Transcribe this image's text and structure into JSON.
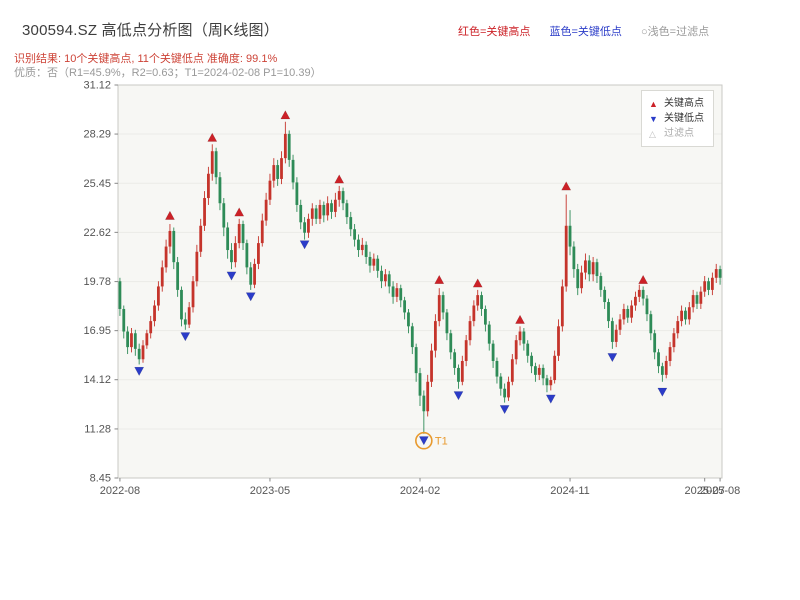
{
  "header": {
    "title": "300594.SZ 高低点分析图（周K线图）",
    "legend_high": "红色=关键高点",
    "legend_low": "蓝色=关键低点",
    "legend_filter": "○浅色=过滤点",
    "result_line": "识别结果: 10个关键高点, 11个关键低点  准确度: 99.1%",
    "quality_line": "优质：否（R1=45.9%，R2=0.63；T1=2024-02-08 P1=10.39）"
  },
  "legend_box": {
    "items": [
      {
        "glyph": "▲",
        "label": "关键高点"
      },
      {
        "glyph": "▼",
        "label": "关键低点"
      },
      {
        "glyph": "△",
        "label": "过滤点"
      }
    ]
  },
  "colors": {
    "key_high": "#cc2127",
    "key_low": "#2b3cc8",
    "filter": "#c0c0c0",
    "up": "#c5342b",
    "down": "#2e8b57",
    "t1": "#e89a2e",
    "result_text": "#cd4337",
    "muted": "#999999"
  },
  "chart_data": {
    "type": "candlestick",
    "title": "300594.SZ 高低点分析图（周K线图）",
    "xlabel": "",
    "ylabel": "",
    "ylim": [
      8.45,
      31.12
    ],
    "yticks": [
      31.12,
      28.29,
      25.45,
      22.62,
      19.78,
      16.95,
      14.12,
      11.28,
      8.45
    ],
    "xticks": [
      {
        "i": 0,
        "label": "2022-08"
      },
      {
        "i": 39,
        "label": "2023-05"
      },
      {
        "i": 78,
        "label": "2024-02"
      },
      {
        "i": 117,
        "label": "2024-11"
      },
      {
        "i": 152,
        "label": "2025-07"
      },
      {
        "i": 156,
        "label": "2025-08"
      }
    ],
    "candle_order": "ohlc",
    "candles": [
      [
        19.8,
        20.0,
        17.8,
        18.2
      ],
      [
        18.2,
        18.4,
        16.5,
        16.9
      ],
      [
        16.9,
        17.2,
        15.6,
        16.0
      ],
      [
        16.0,
        17.1,
        15.7,
        16.8
      ],
      [
        16.8,
        17.0,
        15.5,
        15.9
      ],
      [
        15.9,
        16.2,
        15.0,
        15.3
      ],
      [
        15.3,
        16.4,
        15.1,
        16.1
      ],
      [
        16.1,
        17.0,
        15.9,
        16.8
      ],
      [
        16.8,
        17.8,
        16.5,
        17.5
      ],
      [
        17.5,
        18.7,
        17.2,
        18.4
      ],
      [
        18.4,
        19.8,
        18.1,
        19.5
      ],
      [
        19.5,
        21.0,
        19.2,
        20.6
      ],
      [
        20.6,
        22.2,
        20.3,
        21.8
      ],
      [
        21.8,
        23.1,
        21.4,
        22.7
      ],
      [
        22.7,
        22.9,
        20.5,
        20.9
      ],
      [
        20.9,
        21.2,
        18.9,
        19.3
      ],
      [
        19.3,
        19.5,
        17.2,
        17.6
      ],
      [
        17.6,
        18.0,
        17.0,
        17.3
      ],
      [
        17.3,
        18.6,
        17.1,
        18.3
      ],
      [
        18.3,
        20.1,
        18.0,
        19.8
      ],
      [
        19.8,
        21.9,
        19.5,
        21.5
      ],
      [
        21.5,
        23.4,
        21.2,
        23.0
      ],
      [
        23.0,
        25.0,
        22.7,
        24.6
      ],
      [
        24.6,
        26.4,
        24.2,
        26.0
      ],
      [
        26.0,
        27.7,
        25.6,
        27.3
      ],
      [
        27.3,
        27.5,
        25.4,
        25.8
      ],
      [
        25.8,
        26.1,
        23.9,
        24.3
      ],
      [
        24.3,
        24.6,
        22.4,
        22.9
      ],
      [
        22.9,
        23.2,
        21.1,
        21.6
      ],
      [
        21.6,
        22.0,
        20.5,
        20.9
      ],
      [
        20.9,
        22.4,
        20.6,
        22.0
      ],
      [
        22.0,
        23.4,
        21.7,
        23.1
      ],
      [
        23.1,
        23.3,
        21.6,
        22.0
      ],
      [
        22.0,
        22.2,
        20.2,
        20.6
      ],
      [
        20.6,
        20.9,
        19.3,
        19.6
      ],
      [
        19.6,
        21.1,
        19.4,
        20.8
      ],
      [
        20.8,
        22.4,
        20.5,
        22.0
      ],
      [
        22.0,
        23.7,
        21.8,
        23.3
      ],
      [
        23.3,
        24.9,
        23.0,
        24.5
      ],
      [
        24.5,
        26.0,
        24.2,
        25.6
      ],
      [
        25.6,
        26.9,
        25.2,
        26.5
      ],
      [
        26.5,
        26.8,
        25.3,
        25.7
      ],
      [
        25.7,
        27.3,
        25.4,
        26.9
      ],
      [
        26.9,
        29.0,
        26.6,
        28.3
      ],
      [
        28.3,
        28.5,
        26.4,
        26.8
      ],
      [
        26.8,
        27.1,
        25.1,
        25.5
      ],
      [
        25.5,
        25.8,
        23.8,
        24.2
      ],
      [
        24.2,
        24.5,
        22.8,
        23.2
      ],
      [
        23.2,
        23.5,
        22.2,
        22.6
      ],
      [
        22.6,
        23.7,
        22.3,
        23.4
      ],
      [
        23.4,
        24.3,
        23.0,
        24.0
      ],
      [
        24.0,
        24.2,
        23.1,
        23.4
      ],
      [
        23.4,
        24.5,
        23.1,
        24.2
      ],
      [
        24.2,
        24.4,
        23.2,
        23.6
      ],
      [
        23.6,
        24.7,
        23.3,
        24.3
      ],
      [
        24.3,
        24.5,
        23.4,
        23.8
      ],
      [
        23.8,
        24.9,
        23.5,
        24.5
      ],
      [
        24.5,
        25.3,
        24.1,
        25.0
      ],
      [
        25.0,
        25.2,
        23.9,
        24.3
      ],
      [
        24.3,
        24.5,
        23.1,
        23.5
      ],
      [
        23.5,
        23.8,
        22.4,
        22.8
      ],
      [
        22.8,
        23.1,
        21.8,
        22.2
      ],
      [
        22.2,
        22.5,
        21.2,
        21.6
      ],
      [
        21.6,
        22.3,
        21.3,
        21.9
      ],
      [
        21.9,
        22.1,
        20.8,
        21.2
      ],
      [
        21.2,
        21.5,
        20.3,
        20.7
      ],
      [
        20.7,
        21.4,
        20.4,
        21.1
      ],
      [
        21.1,
        21.3,
        20.0,
        20.4
      ],
      [
        20.4,
        20.7,
        19.4,
        19.8
      ],
      [
        19.8,
        20.5,
        19.5,
        20.2
      ],
      [
        20.2,
        20.4,
        19.1,
        19.5
      ],
      [
        19.5,
        19.8,
        18.5,
        18.9
      ],
      [
        18.9,
        19.7,
        18.6,
        19.4
      ],
      [
        19.4,
        19.6,
        18.3,
        18.7
      ],
      [
        18.7,
        18.9,
        17.6,
        18.0
      ],
      [
        18.0,
        18.2,
        16.8,
        17.2
      ],
      [
        17.2,
        17.4,
        15.6,
        16.0
      ],
      [
        16.0,
        16.2,
        14.0,
        14.5
      ],
      [
        14.5,
        14.8,
        12.6,
        13.2
      ],
      [
        13.2,
        13.5,
        11.0,
        12.3
      ],
      [
        12.3,
        14.4,
        12.0,
        14.0
      ],
      [
        14.0,
        16.2,
        13.7,
        15.8
      ],
      [
        15.8,
        17.9,
        15.4,
        17.5
      ],
      [
        17.5,
        19.4,
        17.2,
        19.0
      ],
      [
        19.0,
        19.2,
        17.6,
        18.0
      ],
      [
        18.0,
        18.2,
        16.4,
        16.8
      ],
      [
        16.8,
        17.0,
        15.3,
        15.7
      ],
      [
        15.7,
        15.9,
        14.4,
        14.8
      ],
      [
        14.8,
        15.0,
        13.6,
        14.0
      ],
      [
        14.0,
        15.5,
        13.8,
        15.2
      ],
      [
        15.2,
        16.7,
        14.9,
        16.4
      ],
      [
        16.4,
        17.8,
        16.1,
        17.5
      ],
      [
        17.5,
        18.7,
        17.2,
        18.4
      ],
      [
        18.4,
        19.3,
        18.1,
        19.0
      ],
      [
        19.0,
        19.2,
        17.8,
        18.2
      ],
      [
        18.2,
        18.4,
        16.9,
        17.3
      ],
      [
        17.3,
        17.5,
        15.8,
        16.2
      ],
      [
        16.2,
        16.4,
        14.8,
        15.2
      ],
      [
        15.2,
        15.4,
        13.9,
        14.3
      ],
      [
        14.3,
        14.5,
        13.2,
        13.6
      ],
      [
        13.6,
        13.9,
        12.8,
        13.1
      ],
      [
        13.1,
        14.3,
        12.9,
        14.0
      ],
      [
        14.0,
        15.6,
        13.8,
        15.3
      ],
      [
        15.3,
        16.7,
        15.0,
        16.4
      ],
      [
        16.4,
        17.2,
        16.1,
        16.9
      ],
      [
        16.9,
        17.1,
        15.8,
        16.2
      ],
      [
        16.2,
        16.4,
        15.1,
        15.5
      ],
      [
        15.5,
        15.7,
        14.5,
        14.9
      ],
      [
        14.9,
        15.1,
        14.0,
        14.4
      ],
      [
        14.4,
        15.0,
        14.1,
        14.8
      ],
      [
        14.8,
        15.0,
        13.8,
        14.2
      ],
      [
        14.2,
        14.4,
        13.4,
        13.8
      ],
      [
        13.8,
        14.3,
        13.5,
        14.1
      ],
      [
        14.1,
        15.8,
        13.9,
        15.5
      ],
      [
        15.5,
        17.6,
        15.2,
        17.2
      ],
      [
        17.2,
        19.9,
        16.9,
        19.5
      ],
      [
        19.5,
        24.8,
        19.2,
        23.0
      ],
      [
        23.0,
        23.9,
        21.3,
        21.8
      ],
      [
        21.8,
        22.1,
        20.0,
        20.5
      ],
      [
        20.5,
        20.8,
        19.0,
        19.4
      ],
      [
        19.4,
        20.7,
        19.1,
        20.3
      ],
      [
        20.3,
        21.4,
        19.9,
        21.0
      ],
      [
        21.0,
        21.3,
        19.8,
        20.2
      ],
      [
        20.2,
        21.2,
        19.8,
        20.9
      ],
      [
        20.9,
        21.1,
        19.7,
        20.1
      ],
      [
        20.1,
        20.3,
        18.9,
        19.3
      ],
      [
        19.3,
        19.5,
        18.2,
        18.6
      ],
      [
        18.6,
        18.8,
        17.1,
        17.5
      ],
      [
        17.5,
        17.7,
        15.9,
        16.3
      ],
      [
        16.3,
        17.3,
        16.0,
        17.0
      ],
      [
        17.0,
        17.9,
        16.7,
        17.6
      ],
      [
        17.6,
        18.5,
        17.3,
        18.2
      ],
      [
        18.2,
        18.4,
        17.4,
        17.7
      ],
      [
        17.7,
        18.7,
        17.4,
        18.4
      ],
      [
        18.4,
        19.2,
        18.1,
        18.9
      ],
      [
        18.9,
        19.6,
        18.6,
        19.3
      ],
      [
        19.3,
        19.5,
        18.4,
        18.8
      ],
      [
        18.8,
        19.0,
        17.5,
        17.9
      ],
      [
        17.9,
        18.1,
        16.4,
        16.8
      ],
      [
        16.8,
        17.0,
        15.3,
        15.7
      ],
      [
        15.7,
        15.9,
        14.5,
        14.9
      ],
      [
        14.9,
        15.1,
        14.0,
        14.4
      ],
      [
        14.4,
        15.5,
        14.2,
        15.2
      ],
      [
        15.2,
        16.3,
        14.9,
        16.0
      ],
      [
        16.0,
        17.1,
        15.7,
        16.8
      ],
      [
        16.8,
        17.8,
        16.5,
        17.5
      ],
      [
        17.5,
        18.4,
        17.2,
        18.1
      ],
      [
        18.1,
        18.3,
        17.3,
        17.6
      ],
      [
        17.6,
        18.6,
        17.3,
        18.3
      ],
      [
        18.3,
        19.3,
        18.0,
        19.0
      ],
      [
        19.0,
        19.2,
        18.2,
        18.5
      ],
      [
        18.5,
        19.5,
        18.2,
        19.2
      ],
      [
        19.2,
        20.1,
        18.9,
        19.8
      ],
      [
        19.8,
        20.0,
        19.0,
        19.3
      ],
      [
        19.3,
        20.3,
        19.0,
        20.0
      ],
      [
        20.0,
        20.8,
        19.7,
        20.5
      ],
      [
        20.5,
        20.7,
        19.6,
        20.0
      ]
    ],
    "key_highs": [
      {
        "i": 13,
        "price": 23.6
      },
      {
        "i": 24,
        "price": 28.1
      },
      {
        "i": 31,
        "price": 23.8
      },
      {
        "i": 43,
        "price": 29.4
      },
      {
        "i": 57,
        "price": 25.7
      },
      {
        "i": 83,
        "price": 19.9
      },
      {
        "i": 93,
        "price": 19.7
      },
      {
        "i": 104,
        "price": 17.6
      },
      {
        "i": 116,
        "price": 25.3
      },
      {
        "i": 136,
        "price": 19.9
      }
    ],
    "key_lows": [
      {
        "i": 5,
        "price": 14.6
      },
      {
        "i": 17,
        "price": 16.6
      },
      {
        "i": 29,
        "price": 20.1
      },
      {
        "i": 34,
        "price": 18.9
      },
      {
        "i": 48,
        "price": 21.9
      },
      {
        "i": 79,
        "price": 10.6
      },
      {
        "i": 88,
        "price": 13.2
      },
      {
        "i": 100,
        "price": 12.4
      },
      {
        "i": 112,
        "price": 13.0
      },
      {
        "i": 128,
        "price": 15.4
      },
      {
        "i": 141,
        "price": 13.4
      }
    ],
    "t1": {
      "i": 79,
      "price": 10.6,
      "label": "T1"
    },
    "legend_position": "upper-right",
    "grid": "horizontal-faint"
  }
}
